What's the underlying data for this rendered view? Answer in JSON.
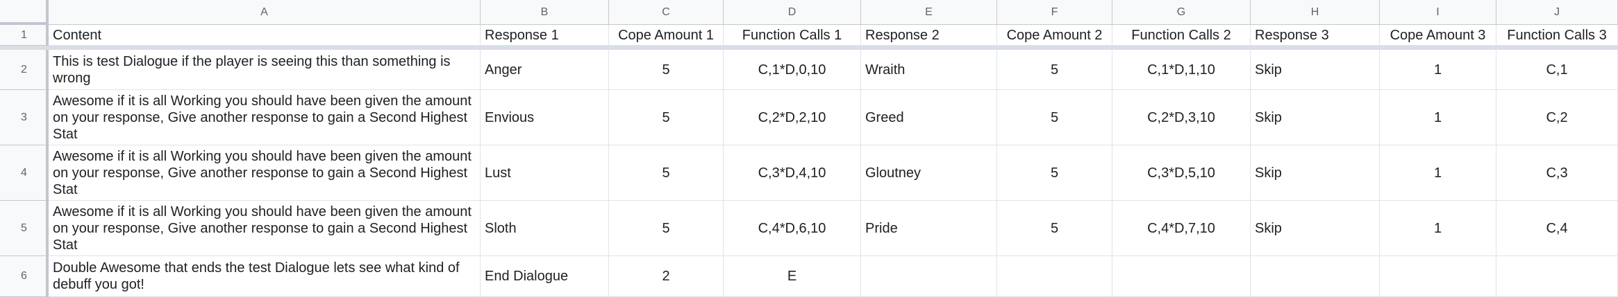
{
  "columns": [
    "A",
    "B",
    "C",
    "D",
    "E",
    "F",
    "G",
    "H",
    "I",
    "J"
  ],
  "rows": [
    {
      "num": "1",
      "cells": [
        "Content",
        "Response 1",
        "Cope Amount 1",
        "Function Calls 1",
        "Response 2",
        "Cope Amount 2",
        "Function Calls 2",
        "Response 3",
        "Cope Amount 3",
        "Function Calls 3"
      ]
    },
    {
      "num": "2",
      "cells": [
        "This is test Dialogue if the player is seeing this than something is wrong",
        "Anger",
        "5",
        "C,1*D,0,10",
        "Wraith",
        "5",
        "C,1*D,1,10",
        "Skip",
        "1",
        "C,1"
      ]
    },
    {
      "num": "3",
      "cells": [
        "Awesome if it is all Working you should have been given the amount on your response, Give another response to gain a Second Highest Stat",
        "Envious",
        "5",
        "C,2*D,2,10",
        "Greed",
        "5",
        "C,2*D,3,10",
        "Skip",
        "1",
        "C,2"
      ]
    },
    {
      "num": "4",
      "cells": [
        "Awesome if it is all Working you should have been given the amount on your response, Give another response to gain a Second Highest Stat",
        "Lust",
        "5",
        "C,3*D,4,10",
        "Gloutney",
        "5",
        "C,3*D,5,10",
        "Skip",
        "1",
        "C,3"
      ]
    },
    {
      "num": "5",
      "cells": [
        "Awesome if it is all Working you should have been given the amount on your response, Give another response to gain a Second Highest Stat",
        "Sloth",
        "5",
        "C,4*D,6,10",
        "Pride",
        "5",
        "C,4*D,7,10",
        "Skip",
        "1",
        "C,4"
      ]
    },
    {
      "num": "6",
      "cells": [
        "Double Awesome that ends the test Dialogue lets see what kind of debuff you got!",
        "End Dialogue",
        "2",
        "E",
        "",
        "",
        "",
        "",
        "",
        ""
      ]
    }
  ],
  "alignment": [
    "left",
    "left",
    "center",
    "center",
    "left",
    "center",
    "center",
    "left",
    "center",
    "center"
  ],
  "colors": {
    "header_bg": "#f8f9fa",
    "grid_line": "#e2e3e3",
    "freeze_bar": "#d9dee6",
    "text": "#202124"
  }
}
